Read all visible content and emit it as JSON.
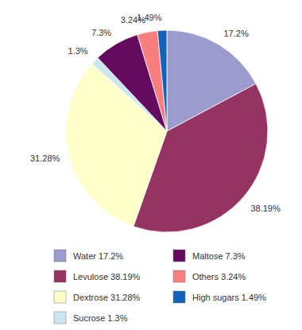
{
  "chart_data": {
    "type": "pie",
    "categories": [
      "Water",
      "Levulose",
      "Dextrose",
      "Sucrose",
      "Maltose",
      "Others",
      "High sugars"
    ],
    "values": [
      17.2,
      38.19,
      31.28,
      1.3,
      7.3,
      3.24,
      1.49
    ],
    "value_labels": [
      "17.2%",
      "38.19%",
      "31.28%",
      "1.3%",
      "7.3%",
      "3.24%",
      "1.49%"
    ],
    "colors": [
      "#9b9bce",
      "#953462",
      "#ffffcc",
      "#cbe7ef",
      "#650a5e",
      "#f97f7f",
      "#1262b8"
    ],
    "data_labels": true,
    "legend": "bottom"
  }
}
